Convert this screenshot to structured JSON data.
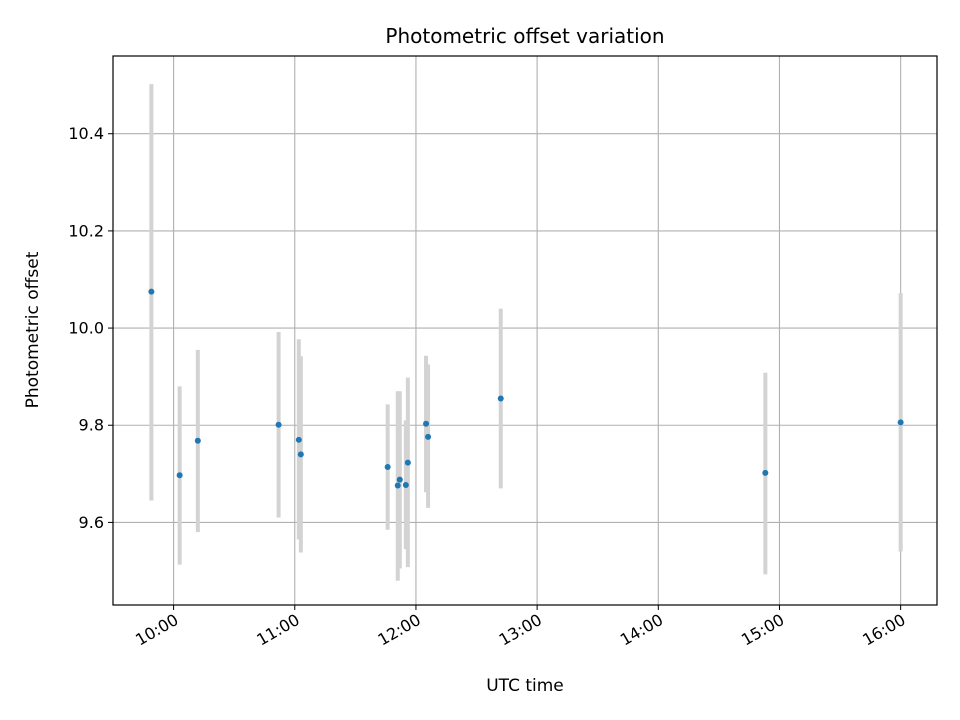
{
  "chart_data": {
    "type": "scatter",
    "title": "Photometric offset variation",
    "xlabel": "UTC time",
    "ylabel": "Photometric offset",
    "x_ticks": [
      "10:00",
      "11:00",
      "12:00",
      "13:00",
      "14:00",
      "15:00",
      "16:00"
    ],
    "y_ticks": [
      "9.6",
      "9.8",
      "10.0",
      "10.2",
      "10.4"
    ],
    "xlim": [
      "09:30",
      "16:18"
    ],
    "ylim": [
      9.43,
      10.56
    ],
    "grid": true,
    "marker_color": "#1f77b4",
    "errorbar_color": "#d3d3d3",
    "points": [
      {
        "x": "09:49",
        "y": 10.075,
        "err_low": 9.645,
        "err_high": 10.502
      },
      {
        "x": "10:03",
        "y": 9.697,
        "err_low": 9.513,
        "err_high": 9.88
      },
      {
        "x": "10:12",
        "y": 9.768,
        "err_low": 9.58,
        "err_high": 9.955
      },
      {
        "x": "10:52",
        "y": 9.801,
        "err_low": 9.61,
        "err_high": 9.992
      },
      {
        "x": "11:02",
        "y": 9.77,
        "err_low": 9.565,
        "err_high": 9.977
      },
      {
        "x": "11:03",
        "y": 9.74,
        "err_low": 9.538,
        "err_high": 9.942
      },
      {
        "x": "11:46",
        "y": 9.714,
        "err_low": 9.585,
        "err_high": 9.843
      },
      {
        "x": "11:51",
        "y": 9.676,
        "err_low": 9.48,
        "err_high": 9.87
      },
      {
        "x": "11:52",
        "y": 9.688,
        "err_low": 9.505,
        "err_high": 9.87
      },
      {
        "x": "11:55",
        "y": 9.677,
        "err_low": 9.545,
        "err_high": 9.81
      },
      {
        "x": "11:56",
        "y": 9.723,
        "err_low": 9.508,
        "err_high": 9.898
      },
      {
        "x": "12:05",
        "y": 9.803,
        "err_low": 9.662,
        "err_high": 9.943
      },
      {
        "x": "12:06",
        "y": 9.776,
        "err_low": 9.63,
        "err_high": 9.925
      },
      {
        "x": "12:42",
        "y": 9.855,
        "err_low": 9.67,
        "err_high": 10.04
      },
      {
        "x": "14:53",
        "y": 9.702,
        "err_low": 9.493,
        "err_high": 9.908
      },
      {
        "x": "16:00",
        "y": 9.806,
        "err_low": 9.54,
        "err_high": 10.072
      }
    ]
  }
}
